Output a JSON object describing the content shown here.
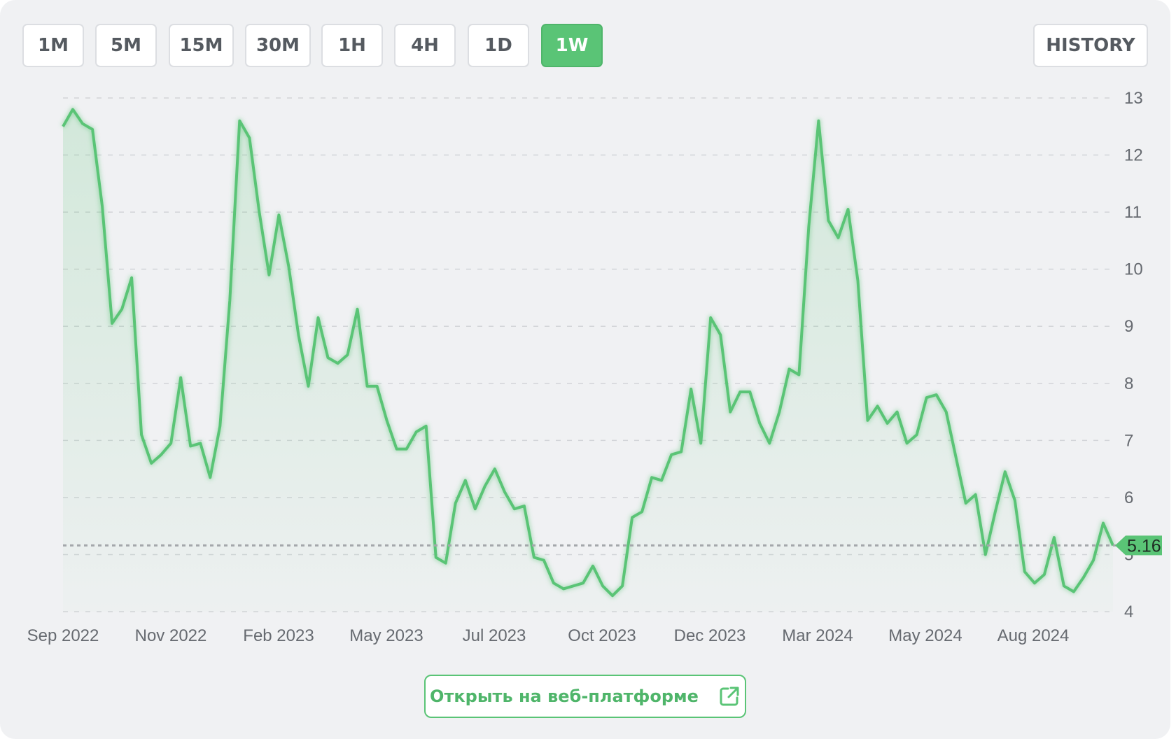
{
  "timeframes": [
    "1M",
    "5M",
    "15M",
    "30M",
    "1H",
    "4H",
    "1D",
    "1W"
  ],
  "active_timeframe": "1W",
  "history_label": "HISTORY",
  "open_web_label": "Открыть на веб-платформе",
  "icons": {
    "open_external": "external-link-icon",
    "price_marker": "price-arrow-icon"
  },
  "colors": {
    "accent": "#5ac476",
    "line": "#5ac476",
    "background": "#f0f1f3",
    "grid": "#d2d4d8"
  },
  "chart_data": {
    "type": "area",
    "x_ticks": [
      "Sep 2022",
      "Nov 2022",
      "Feb 2023",
      "May 2023",
      "Jul 2023",
      "Oct 2023",
      "Dec 2023",
      "Mar 2024",
      "May 2024",
      "Aug 2024"
    ],
    "y_ticks": [
      4,
      5,
      6,
      7,
      8,
      9,
      10,
      11,
      12,
      13
    ],
    "ylim": [
      4,
      13
    ],
    "grid": "horizontal dashed",
    "y_axis_position": "right",
    "current_value": 5.16,
    "current_value_label": "5.16",
    "series": [
      {
        "values": [
          12.5,
          12.8,
          12.55,
          12.45,
          11.1,
          9.05,
          9.3,
          9.85,
          7.1,
          6.6,
          6.75,
          6.95,
          8.1,
          6.9,
          6.95,
          6.35,
          7.25,
          9.45,
          12.6,
          12.3,
          11.0,
          9.9,
          10.95,
          10.05,
          8.85,
          7.95,
          9.15,
          8.45,
          8.35,
          8.5,
          9.3,
          7.95,
          7.95,
          7.35,
          6.85,
          6.85,
          7.15,
          7.25,
          4.95,
          4.85,
          5.9,
          6.3,
          5.8,
          6.2,
          6.5,
          6.1,
          5.8,
          5.85,
          4.95,
          4.9,
          4.5,
          4.4,
          4.45,
          4.5,
          4.8,
          4.45,
          4.28,
          4.45,
          5.65,
          5.75,
          6.35,
          6.3,
          6.75,
          6.8,
          7.9,
          6.95,
          9.15,
          8.85,
          7.5,
          7.85,
          7.85,
          7.3,
          6.95,
          7.5,
          8.25,
          8.15,
          10.75,
          12.6,
          10.85,
          10.55,
          11.05,
          9.8,
          7.35,
          7.6,
          7.3,
          7.5,
          6.95,
          7.1,
          7.75,
          7.8,
          7.5,
          6.7,
          5.9,
          6.05,
          5.0,
          5.75,
          6.45,
          5.95,
          4.7,
          4.5,
          4.65,
          5.3,
          4.45,
          4.35,
          4.6,
          4.9,
          5.55,
          5.16
        ]
      }
    ]
  }
}
